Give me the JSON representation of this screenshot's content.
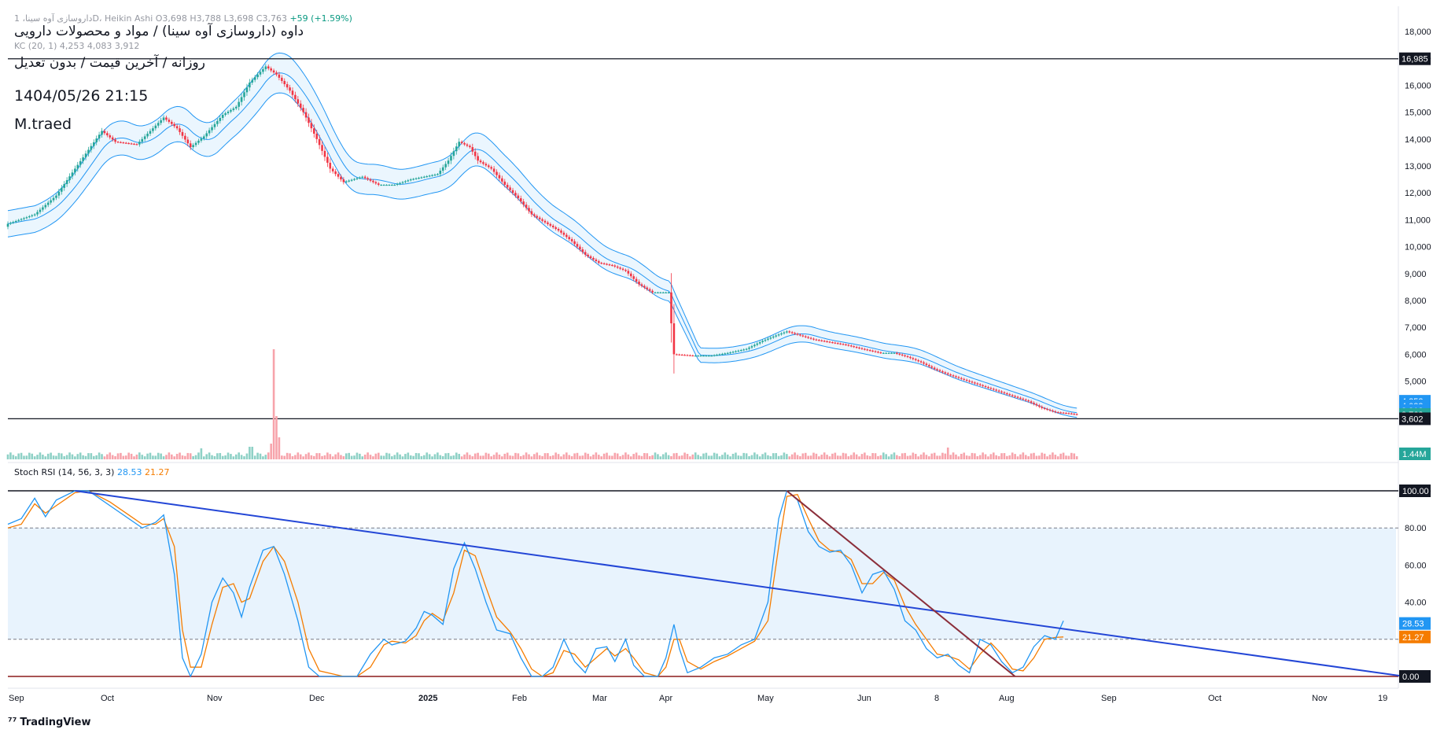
{
  "header": {
    "symbol_line": "داروسازی آوه سینا، 1D، Heikin Ashi",
    "ohlc": "O3,698 H3,788 L3,698 C3,763",
    "change": "+59 (+1.59%)",
    "title": "داوه (داروسازی آوه سینا) / مواد و محصولات دارویی",
    "subtitle": "روزانه / آخرین قیمت / بدون تعدیل",
    "datetime": "1404/05/26 21:15",
    "author": "M.traed",
    "kc_legend": "KC (20, 1)  4,253  4,083  3,912",
    "stoch_label": "Stoch RSI (14, 56, 3, 3)",
    "stoch_k": "28.53",
    "stoch_d": "21.27",
    "brand": "TradingView"
  },
  "colors": {
    "up": "#26a69a",
    "down": "#f23645",
    "kc": "#2196f3",
    "kc_fill": "#e3f2fd",
    "stoch_k": "#2196f3",
    "stoch_d": "#f57c00",
    "trend_blue": "#2346d6",
    "trend_red": "#8b2e3a",
    "level": "#131722"
  },
  "chart_data": [
    {
      "type": "candlestick",
      "price_axis_ticks": [
        "18,000",
        "17,000",
        "16,000",
        "15,000",
        "14,000",
        "13,000",
        "12,000",
        "11,000",
        "10,000",
        "9,000",
        "8,000",
        "7,000",
        "6,000",
        "5,000"
      ],
      "ylim": [
        4300,
        18400
      ],
      "time_axis_labels": [
        "Sep",
        "Oct",
        "Nov",
        "Dec",
        "2025",
        "Feb",
        "Mar",
        "Apr",
        "May",
        "Jun",
        "8",
        "Aug",
        "Sep",
        "Oct",
        "Nov",
        "19"
      ],
      "horizontal_levels": [
        16985,
        3602
      ],
      "badges": [
        {
          "label": "16,985",
          "value": 16985,
          "color": "#131722"
        },
        {
          "label": "4,253",
          "value": 4253,
          "color": "#2196f3"
        },
        {
          "label": "4,083",
          "value": 4083,
          "color": "#2196f3"
        },
        {
          "label": "3,912",
          "value": 3912,
          "color": "#2196f3"
        },
        {
          "label": "3,763",
          "value": 3763,
          "color": "#26a69a"
        },
        {
          "label": "3,602",
          "value": 3602,
          "color": "#131722"
        }
      ],
      "volume_badge": "1.44M",
      "close_path": [
        [
          0,
          10850
        ],
        [
          10,
          11200
        ],
        [
          18,
          11900
        ],
        [
          25,
          12900
        ],
        [
          30,
          13600
        ],
        [
          35,
          14300
        ],
        [
          40,
          13900
        ],
        [
          48,
          13800
        ],
        [
          52,
          14200
        ],
        [
          58,
          14800
        ],
        [
          63,
          14400
        ],
        [
          68,
          13700
        ],
        [
          73,
          14100
        ],
        [
          80,
          14900
        ],
        [
          85,
          15200
        ],
        [
          90,
          16100
        ],
        [
          96,
          16700
        ],
        [
          100,
          16400
        ],
        [
          105,
          15800
        ],
        [
          110,
          15000
        ],
        [
          115,
          14000
        ],
        [
          120,
          12900
        ],
        [
          125,
          12400
        ],
        [
          132,
          12600
        ],
        [
          138,
          12300
        ],
        [
          144,
          12300
        ],
        [
          150,
          12500
        ],
        [
          155,
          12600
        ],
        [
          160,
          12700
        ],
        [
          164,
          13200
        ],
        [
          168,
          13900
        ],
        [
          172,
          13700
        ],
        [
          175,
          13200
        ],
        [
          180,
          12900
        ],
        [
          185,
          12300
        ],
        [
          190,
          11800
        ],
        [
          195,
          11200
        ],
        [
          200,
          10900
        ],
        [
          205,
          10600
        ],
        [
          210,
          10200
        ],
        [
          215,
          9700
        ],
        [
          220,
          9400
        ],
        [
          225,
          9300
        ],
        [
          230,
          9100
        ],
        [
          235,
          8600
        ],
        [
          240,
          8300
        ],
        [
          246,
          8300
        ],
        [
          248,
          6000
        ],
        [
          255,
          5950
        ],
        [
          262,
          5950
        ],
        [
          268,
          6050
        ],
        [
          275,
          6200
        ],
        [
          281,
          6500
        ],
        [
          286,
          6700
        ],
        [
          290,
          6850
        ],
        [
          295,
          6700
        ],
        [
          300,
          6550
        ],
        [
          306,
          6450
        ],
        [
          312,
          6350
        ],
        [
          318,
          6200
        ],
        [
          325,
          6050
        ],
        [
          330,
          6050
        ],
        [
          335,
          5900
        ],
        [
          340,
          5700
        ],
        [
          345,
          5450
        ],
        [
          350,
          5250
        ],
        [
          356,
          5050
        ],
        [
          362,
          4850
        ],
        [
          368,
          4650
        ],
        [
          374,
          4450
        ],
        [
          380,
          4250
        ],
        [
          385,
          4000
        ],
        [
          390,
          3850
        ],
        [
          395,
          3800
        ],
        [
          398,
          3763
        ]
      ],
      "bar_count": 399,
      "keltner_channel": {
        "params": "20, 1",
        "upper": 4253,
        "middle": 4083,
        "lower": 3912
      }
    },
    {
      "type": "line",
      "name": "Stoch RSI (14, 56, 3, 3)",
      "levels": [
        100,
        80,
        20,
        0
      ],
      "axis_ticks": [
        "100.00",
        "80.00",
        "60.00",
        "40.00",
        "0.00"
      ],
      "ylim": [
        0,
        100
      ],
      "k_last": "28.53",
      "d_last": "21.27",
      "k_path": [
        [
          0,
          82
        ],
        [
          5,
          85
        ],
        [
          10,
          96
        ],
        [
          14,
          86
        ],
        [
          18,
          95
        ],
        [
          25,
          100
        ],
        [
          30,
          100
        ],
        [
          38,
          92
        ],
        [
          45,
          85
        ],
        [
          50,
          80
        ],
        [
          55,
          83
        ],
        [
          58,
          87
        ],
        [
          62,
          55
        ],
        [
          65,
          10
        ],
        [
          68,
          0
        ],
        [
          72,
          12
        ],
        [
          76,
          40
        ],
        [
          80,
          53
        ],
        [
          84,
          45
        ],
        [
          87,
          32
        ],
        [
          90,
          48
        ],
        [
          95,
          68
        ],
        [
          99,
          70
        ],
        [
          103,
          55
        ],
        [
          108,
          30
        ],
        [
          112,
          5
        ],
        [
          116,
          0
        ],
        [
          125,
          0
        ],
        [
          130,
          0
        ],
        [
          135,
          12
        ],
        [
          140,
          20
        ],
        [
          143,
          17
        ],
        [
          148,
          19
        ],
        [
          152,
          26
        ],
        [
          155,
          35
        ],
        [
          158,
          33
        ],
        [
          162,
          28
        ],
        [
          166,
          58
        ],
        [
          170,
          72
        ],
        [
          174,
          58
        ],
        [
          178,
          40
        ],
        [
          182,
          25
        ],
        [
          187,
          23
        ],
        [
          191,
          10
        ],
        [
          195,
          0
        ],
        [
          199,
          0
        ],
        [
          203,
          5
        ],
        [
          207,
          20
        ],
        [
          211,
          8
        ],
        [
          215,
          2
        ],
        [
          219,
          15
        ],
        [
          223,
          16
        ],
        [
          226,
          8
        ],
        [
          230,
          20
        ],
        [
          233,
          6
        ],
        [
          237,
          0
        ],
        [
          242,
          0
        ],
        [
          245,
          10
        ],
        [
          248,
          28
        ],
        [
          250,
          15
        ],
        [
          253,
          2
        ],
        [
          258,
          5
        ],
        [
          263,
          10
        ],
        [
          268,
          12
        ],
        [
          273,
          17
        ],
        [
          278,
          20
        ],
        [
          283,
          40
        ],
        [
          287,
          85
        ],
        [
          290,
          100
        ],
        [
          294,
          95
        ],
        [
          298,
          78
        ],
        [
          302,
          70
        ],
        [
          306,
          67
        ],
        [
          310,
          68
        ],
        [
          314,
          60
        ],
        [
          318,
          45
        ],
        [
          322,
          55
        ],
        [
          326,
          57
        ],
        [
          330,
          47
        ],
        [
          334,
          30
        ],
        [
          338,
          25
        ],
        [
          342,
          15
        ],
        [
          346,
          10
        ],
        [
          350,
          12
        ],
        [
          354,
          6
        ],
        [
          358,
          2
        ],
        [
          362,
          20
        ],
        [
          366,
          17
        ],
        [
          370,
          8
        ],
        [
          374,
          2
        ],
        [
          378,
          5
        ],
        [
          382,
          16
        ],
        [
          386,
          22
        ],
        [
          390,
          20
        ],
        [
          393,
          30
        ]
      ],
      "d_path": [
        [
          0,
          80
        ],
        [
          5,
          82
        ],
        [
          10,
          93
        ],
        [
          14,
          88
        ],
        [
          18,
          92
        ],
        [
          25,
          99
        ],
        [
          30,
          100
        ],
        [
          38,
          94
        ],
        [
          45,
          87
        ],
        [
          50,
          82
        ],
        [
          55,
          82
        ],
        [
          58,
          85
        ],
        [
          62,
          70
        ],
        [
          65,
          25
        ],
        [
          68,
          5
        ],
        [
          72,
          5
        ],
        [
          76,
          28
        ],
        [
          80,
          48
        ],
        [
          84,
          50
        ],
        [
          87,
          40
        ],
        [
          90,
          42
        ],
        [
          95,
          62
        ],
        [
          99,
          70
        ],
        [
          103,
          62
        ],
        [
          108,
          40
        ],
        [
          112,
          15
        ],
        [
          116,
          3
        ],
        [
          125,
          0
        ],
        [
          130,
          0
        ],
        [
          135,
          5
        ],
        [
          140,
          17
        ],
        [
          143,
          19
        ],
        [
          148,
          18
        ],
        [
          152,
          22
        ],
        [
          155,
          30
        ],
        [
          158,
          34
        ],
        [
          162,
          30
        ],
        [
          166,
          45
        ],
        [
          170,
          68
        ],
        [
          174,
          65
        ],
        [
          178,
          48
        ],
        [
          182,
          32
        ],
        [
          187,
          24
        ],
        [
          191,
          15
        ],
        [
          195,
          4
        ],
        [
          199,
          0
        ],
        [
          203,
          2
        ],
        [
          207,
          14
        ],
        [
          211,
          12
        ],
        [
          215,
          5
        ],
        [
          219,
          10
        ],
        [
          223,
          15
        ],
        [
          226,
          11
        ],
        [
          230,
          15
        ],
        [
          233,
          10
        ],
        [
          237,
          2
        ],
        [
          242,
          0
        ],
        [
          245,
          5
        ],
        [
          248,
          20
        ],
        [
          250,
          20
        ],
        [
          253,
          8
        ],
        [
          258,
          4
        ],
        [
          263,
          8
        ],
        [
          268,
          11
        ],
        [
          273,
          15
        ],
        [
          278,
          19
        ],
        [
          283,
          30
        ],
        [
          287,
          70
        ],
        [
          290,
          97
        ],
        [
          294,
          98
        ],
        [
          298,
          85
        ],
        [
          302,
          73
        ],
        [
          306,
          68
        ],
        [
          310,
          67
        ],
        [
          314,
          63
        ],
        [
          318,
          50
        ],
        [
          322,
          50
        ],
        [
          326,
          56
        ],
        [
          330,
          52
        ],
        [
          334,
          38
        ],
        [
          338,
          28
        ],
        [
          342,
          20
        ],
        [
          346,
          12
        ],
        [
          350,
          11
        ],
        [
          354,
          9
        ],
        [
          358,
          4
        ],
        [
          362,
          12
        ],
        [
          366,
          18
        ],
        [
          370,
          12
        ],
        [
          374,
          4
        ],
        [
          378,
          3
        ],
        [
          382,
          10
        ],
        [
          386,
          20
        ],
        [
          390,
          21
        ],
        [
          393,
          21.27
        ]
      ],
      "trendlines": [
        {
          "color": "blue",
          "from": [
            25,
            100
          ],
          "to": [
            520,
            0
          ]
        },
        {
          "color": "red",
          "from": [
            290,
            100
          ],
          "to": [
            375,
            0
          ]
        }
      ]
    }
  ]
}
